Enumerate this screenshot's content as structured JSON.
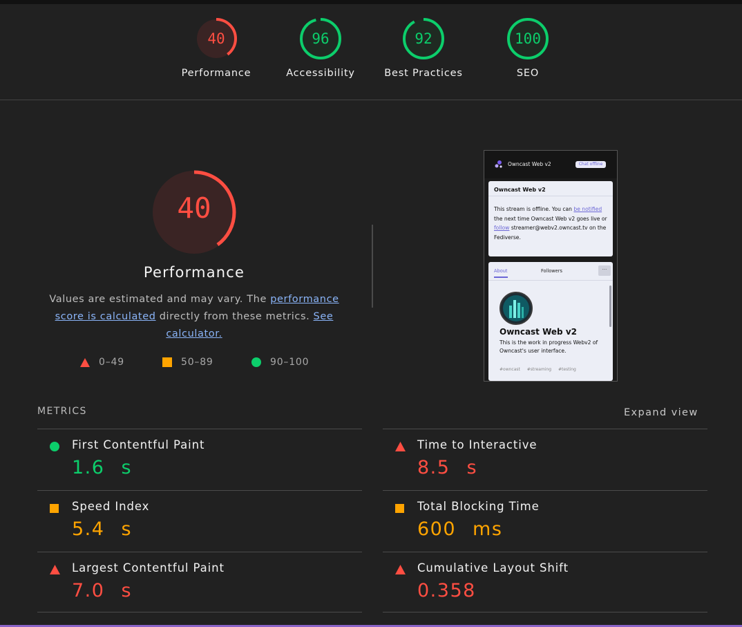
{
  "top_scores": [
    {
      "score": "40",
      "label": "Performance",
      "fraction": 0.4,
      "color": "#ff4e42",
      "bg": "#3a2424"
    },
    {
      "score": "96",
      "label": "Accessibility",
      "fraction": 0.96,
      "color": "#0cce6b",
      "bg": "#1f2a22"
    },
    {
      "score": "92",
      "label": "Best Practices",
      "fraction": 0.92,
      "color": "#0cce6b",
      "bg": "#1f2a22"
    },
    {
      "score": "100",
      "label": "SEO",
      "fraction": 1.0,
      "color": "#0cce6b",
      "bg": "#1f2a22"
    }
  ],
  "performance": {
    "score": "40",
    "fraction": 0.4,
    "title": "Performance",
    "desc_1": "Values are estimated and may vary. The ",
    "link_1": "performance score is calculated",
    "desc_2": " directly from these metrics. ",
    "link_2": "See calculator.",
    "legend": {
      "fail": "0–49",
      "average": "50–89",
      "pass": "90–100"
    }
  },
  "screenshot": {
    "app_title": "Owncast Web v2",
    "chat_badge": "Chat offline",
    "card_title": "Owncast Web v2",
    "card_text_1": "This stream is offline. You can ",
    "card_link_1": "be notified",
    "card_text_2": " the next time Owncast Web v2 goes live or ",
    "card_link_2": "follow",
    "card_text_3": " streamer@webv2.owncast.tv on the Fediverse.",
    "tab_about": "About",
    "tab_followers": "Followers",
    "more": "···",
    "name": "Owncast Web v2",
    "bio": "This is the work in progress Webv2 of Owncast's user interface.",
    "tags": "#owncast #streaming #testing"
  },
  "metrics_section": {
    "title": "METRICS",
    "expand": "Expand view"
  },
  "metrics": [
    {
      "name": "First Contentful Paint",
      "value": "1.6",
      "unit": "s",
      "status": "pass"
    },
    {
      "name": "Time to Interactive",
      "value": "8.5",
      "unit": "s",
      "status": "fail"
    },
    {
      "name": "Speed Index",
      "value": "5.4",
      "unit": "s",
      "status": "average"
    },
    {
      "name": "Total Blocking Time",
      "value": "600",
      "unit": "ms",
      "status": "average"
    },
    {
      "name": "Largest Contentful Paint",
      "value": "7.0",
      "unit": "s",
      "status": "fail"
    },
    {
      "name": "Cumulative Layout Shift",
      "value": "0.358",
      "unit": "",
      "status": "fail"
    }
  ],
  "colors": {
    "pass": "#0cce6b",
    "average": "#ffa400",
    "fail": "#ff4e42"
  }
}
